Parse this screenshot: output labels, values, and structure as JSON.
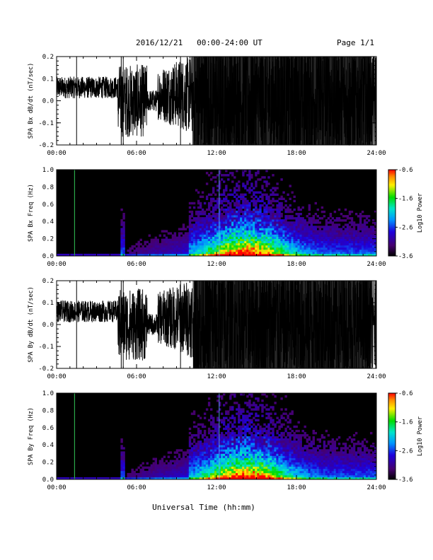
{
  "header": {
    "title": "2016/12/21   00:00-24:00 UT",
    "page": "Page 1/1"
  },
  "chart_data": [
    {
      "type": "line",
      "ylabel": "SPA Bx dB/dt (nT/sec)",
      "xlim": [
        0,
        24
      ],
      "ylim": [
        -0.2,
        0.2
      ],
      "xticks": [
        "00:00",
        "06:00",
        "12:00",
        "18:00",
        "24:00"
      ],
      "yticks": [
        "-0.2",
        "-0.1",
        "0.0",
        "0.1",
        "0.2"
      ]
    },
    {
      "type": "heatmap",
      "ylabel": "SPA Bx Freq (Hz)",
      "xlim": [
        0,
        24
      ],
      "ylim": [
        0.0,
        1.0
      ],
      "xticks": [
        "00:00",
        "06:00",
        "12:00",
        "18:00",
        "24:00"
      ],
      "yticks": [
        "0.0",
        "0.2",
        "0.4",
        "0.6",
        "0.8",
        "1.0"
      ],
      "colorbar": {
        "label": "Log10 Power",
        "range": [
          -3.6,
          -0.6
        ],
        "ticks": [
          "-0.6",
          "-1.6",
          "-2.6",
          "-3.6"
        ]
      }
    },
    {
      "type": "line",
      "ylabel": "SPA By dB/dt (nT/sec)",
      "xlim": [
        0,
        24
      ],
      "ylim": [
        -0.2,
        0.2
      ],
      "xticks": [
        "00:00",
        "06:00",
        "12:00",
        "18:00",
        "24:00"
      ],
      "yticks": [
        "-0.2",
        "-0.1",
        "0.0",
        "0.1",
        "0.2"
      ]
    },
    {
      "type": "heatmap",
      "ylabel": "SPA By Freq (Hz)",
      "xlim": [
        0,
        24
      ],
      "ylim": [
        0.0,
        1.0
      ],
      "xticks": [
        "00:00",
        "06:00",
        "12:00",
        "18:00",
        "24:00"
      ],
      "yticks": [
        "0.0",
        "0.2",
        "0.4",
        "0.6",
        "0.8",
        "1.0"
      ],
      "colorbar": {
        "label": "Log10 Power",
        "range": [
          -3.6,
          -0.6
        ],
        "ticks": [
          "-0.6",
          "-1.6",
          "-2.6",
          "-3.6"
        ]
      }
    }
  ],
  "xlabel": "Universal Time (hh:mm)"
}
